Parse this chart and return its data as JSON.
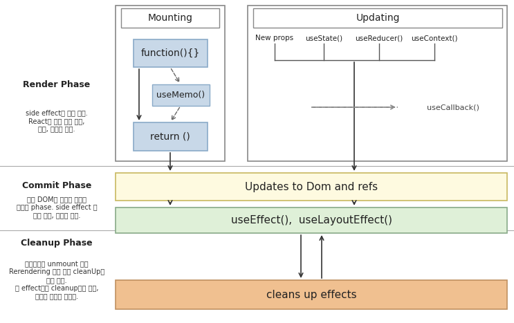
{
  "bg_color": "#ffffff",
  "render_phase_label": "Render Phase",
  "render_phase_sub": "side effect가 없는 과정.\nReact에 의해 일시 중지,\n중단, 재시작 가능.",
  "commit_phase_label": "Commit Phase",
  "commit_phase_sub": "실제 DOM과 연결된 작업이\n가능한 phase. side effect 를\n통한 동작, 예약이 가능.",
  "cleanup_phase_label": "Cleanup Phase",
  "cleanup_phase_sub": "컴포넌트가 unmount 또는\nRerendering 되기 전에 cleanUp을\n하게 된다.\n각 effect들을 cleanup하게 되며,\n메모리 누수를 막는다.",
  "mounting_label": "Mounting",
  "updating_label": "Updating",
  "function_label": "function(){}",
  "usememo_label": "useMemo()",
  "return_label": "return ()",
  "updates_dom_label": "Updates to Dom and refs",
  "useeffect_label": "useEffect(),  useLayoutEffect()",
  "cleansup_label": "cleans up effects",
  "updating_triggers": [
    "New props",
    "useState()",
    "useReducer()",
    "useContext()"
  ],
  "usecallback_label": "useCallback()",
  "box_blue_fill": "#c8d8e8",
  "box_blue_border": "#8aaac8",
  "updates_fill": "#fefae0",
  "updates_border": "#c8b860",
  "useeffect_fill": "#dff0d8",
  "useeffect_border": "#88aa88",
  "cleansup_fill": "#f0c090",
  "cleansup_border": "#c09060",
  "outer_border": "#888888",
  "arrow_color": "#333333",
  "dashed_color": "#888888",
  "divider_color": "#aaaaaa"
}
